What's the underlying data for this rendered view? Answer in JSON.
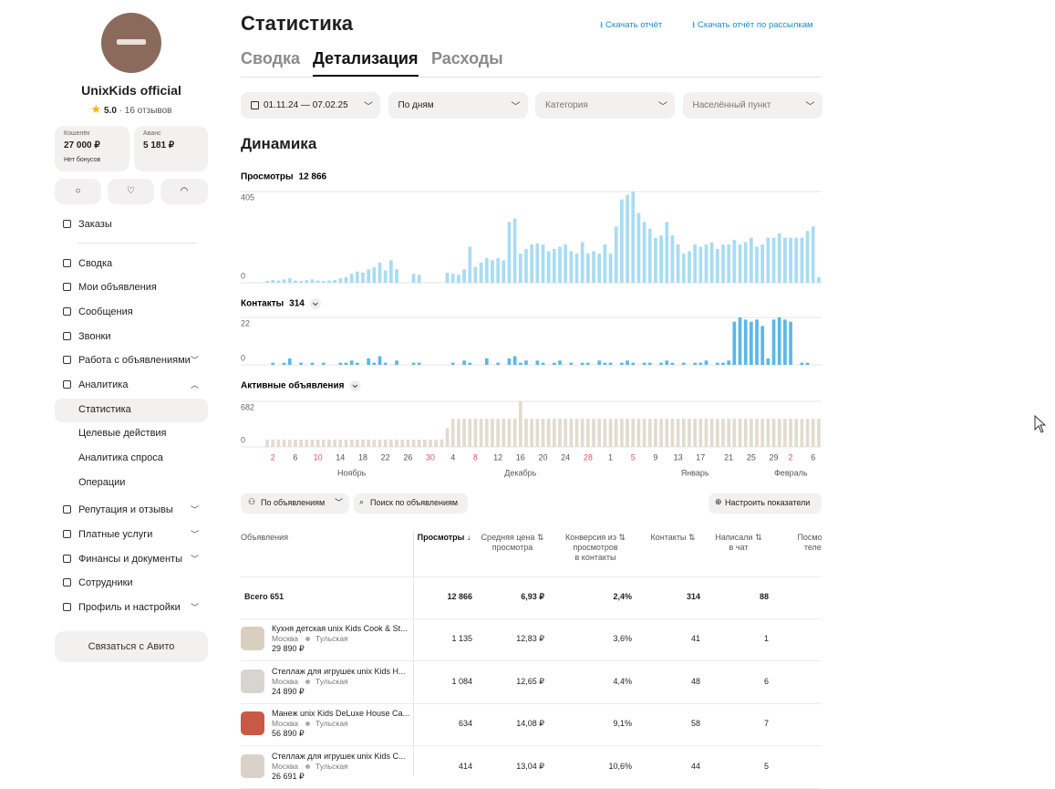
{
  "sidebar": {
    "name": "UnixKids official",
    "rating": "5.0",
    "reviews": "· 16 отзывов",
    "wallet": {
      "label": "Кошелёк",
      "value": "27 000 ₽",
      "note": "Нет бонусов"
    },
    "advance": {
      "label": "Аванс",
      "value": "5 181 ₽"
    },
    "menu": [
      {
        "label": "Заказы"
      },
      {
        "label": "Сводка"
      },
      {
        "label": "Мои объявления"
      },
      {
        "label": "Сообщения"
      },
      {
        "label": "Звонки"
      },
      {
        "label": "Работа с объявлениями",
        "chevron": "down"
      },
      {
        "label": "Аналитика",
        "chevron": "up"
      },
      {
        "label": "Статистика",
        "sub": true,
        "active": true
      },
      {
        "label": "Целевые действия",
        "sub": true
      },
      {
        "label": "Аналитика спроса",
        "sub": true
      },
      {
        "label": "Операции",
        "sub": true
      },
      {
        "label": "Репутация и отзывы",
        "chevron": "down"
      },
      {
        "label": "Платные услуги",
        "chevron": "down"
      },
      {
        "label": "Финансы и документы",
        "chevron": "down"
      },
      {
        "label": "Сотрудники"
      },
      {
        "label": "Профиль и настройки",
        "chevron": "down"
      }
    ],
    "contact_button": "Связаться с Авито"
  },
  "header": {
    "title": "Статистика",
    "links": [
      "Скачать отчёт",
      "Скачать отчёт по рассылкам"
    ],
    "tabs": [
      "Сводка",
      "Детализация",
      "Расходы"
    ],
    "active_tab": 1
  },
  "filters": [
    "01.11.24 — 07.02.25",
    "По дням",
    "Категория",
    "Населённый пункт"
  ],
  "section_title": "Динамика",
  "chart_data": [
    {
      "type": "bar",
      "title": "Просмотры",
      "total": "12 866",
      "color": "#a8dcf2",
      "ylim": [
        0,
        405
      ],
      "yticks": [
        0,
        405
      ],
      "grid": true,
      "values": [
        8,
        12,
        10,
        15,
        20,
        10,
        8,
        12,
        15,
        10,
        8,
        10,
        12,
        20,
        25,
        40,
        50,
        45,
        60,
        70,
        90,
        55,
        100,
        60,
        0,
        0,
        40,
        35,
        0,
        0,
        0,
        0,
        45,
        40,
        35,
        60,
        160,
        70,
        90,
        110,
        100,
        110,
        100,
        270,
        285,
        130,
        150,
        170,
        175,
        170,
        140,
        150,
        160,
        170,
        140,
        130,
        180,
        130,
        140,
        130,
        170,
        130,
        250,
        370,
        390,
        405,
        310,
        270,
        240,
        200,
        210,
        270,
        210,
        170,
        130,
        140,
        170,
        160,
        170,
        180,
        150,
        170,
        170,
        190,
        170,
        180,
        200,
        160,
        170,
        200,
        200,
        220,
        200,
        200,
        200,
        200,
        230,
        250,
        25
      ]
    },
    {
      "type": "bar",
      "title": "Контакты",
      "total": "314",
      "color": "#5bb8e6",
      "ylim": [
        0,
        22
      ],
      "yticks": [
        0,
        22
      ],
      "grid": true,
      "values": [
        0,
        1,
        0,
        1,
        3,
        0,
        1,
        0,
        1,
        0,
        1,
        0,
        0,
        1,
        1,
        2,
        1,
        0,
        3,
        1,
        4,
        1,
        0,
        2,
        0,
        0,
        1,
        1,
        0,
        0,
        0,
        0,
        0,
        1,
        0,
        2,
        1,
        0,
        0,
        3,
        0,
        1,
        0,
        3,
        4,
        1,
        2,
        0,
        2,
        1,
        0,
        1,
        2,
        0,
        1,
        0,
        1,
        1,
        0,
        2,
        1,
        1,
        0,
        1,
        2,
        1,
        0,
        1,
        1,
        0,
        1,
        2,
        1,
        0,
        1,
        0,
        1,
        1,
        2,
        0,
        1,
        1,
        2,
        20,
        22,
        21,
        20,
        21,
        18,
        3,
        21,
        22,
        21,
        20,
        0,
        1,
        1,
        0,
        0
      ]
    },
    {
      "type": "bar",
      "title": "Активные объявления",
      "color": "#e2dbcf",
      "ylim": [
        0,
        682
      ],
      "yticks": [
        0,
        682
      ],
      "grid": true,
      "values": [
        110,
        110,
        110,
        110,
        110,
        110,
        110,
        110,
        110,
        110,
        110,
        110,
        110,
        110,
        110,
        110,
        110,
        110,
        110,
        110,
        110,
        110,
        110,
        110,
        110,
        110,
        110,
        110,
        110,
        110,
        110,
        110,
        280,
        420,
        420,
        420,
        420,
        420,
        420,
        420,
        420,
        420,
        420,
        420,
        420,
        682,
        420,
        420,
        420,
        420,
        420,
        420,
        420,
        420,
        420,
        420,
        420,
        420,
        420,
        420,
        420,
        420,
        420,
        420,
        420,
        420,
        420,
        420,
        420,
        420,
        420,
        420,
        420,
        420,
        420,
        420,
        420,
        420,
        420,
        420,
        420,
        420,
        420,
        420,
        420,
        420,
        420,
        420,
        420,
        420,
        420,
        420,
        420,
        420,
        420,
        420,
        420,
        420,
        420
      ],
      "categories": [
        null,
        "2",
        null,
        null,
        null,
        "6",
        null,
        null,
        null,
        "10",
        null,
        null,
        null,
        "14",
        null,
        null,
        null,
        "18",
        null,
        null,
        null,
        "22",
        null,
        null,
        null,
        "26",
        null,
        null,
        null,
        "30",
        null,
        null,
        null,
        "4",
        null,
        null,
        null,
        "8",
        null,
        null,
        null,
        "12",
        null,
        null,
        null,
        "16",
        null,
        null,
        null,
        "20",
        null,
        null,
        null,
        "24",
        null,
        null,
        null,
        "28",
        null,
        null,
        null,
        "1",
        null,
        null,
        null,
        "5",
        null,
        null,
        null,
        "9",
        null,
        null,
        null,
        "13",
        null,
        null,
        null,
        "17",
        null,
        null,
        null,
        null,
        "21",
        null,
        null,
        null,
        "25",
        null,
        null,
        null,
        "29",
        null,
        null,
        "2",
        null,
        null,
        null,
        "6",
        null
      ],
      "weekend_color": "#e0575c",
      "weekend_categories": [
        1,
        9,
        29,
        37,
        57,
        65,
        85,
        93
      ],
      "months": [
        {
          "label": "Ноябрь",
          "at": 15
        },
        {
          "label": "Декабрь",
          "at": 45
        },
        {
          "label": "Январь",
          "at": 76
        },
        {
          "label": "Февраль",
          "at": 96
        }
      ]
    }
  ],
  "toolbar": {
    "left": [
      "По объявлениям",
      "Поиск по объявлениям"
    ],
    "right": "Настроить показатели"
  },
  "table": {
    "columns": [
      "Объявления",
      "Просмотры ↓",
      "Средняя цена ⇅\nпросмотра",
      "Конверсия из ⇅\nпросмотров\nв контакты",
      "Контакты ⇅",
      "Написали ⇅\nв чат",
      "Посмотрели\nтелефон"
    ],
    "total": {
      "label": "Всего 651",
      "cells": [
        "12 866",
        "6,93 ₽",
        "2,4%",
        "314",
        "88"
      ]
    },
    "rows": [
      {
        "title": "Кухня детская unix Kids Cook & St...",
        "city": "Москва",
        "metro": "Тульская",
        "price": "29 890 ₽",
        "cells": [
          "1 135",
          "12,83 ₽",
          "3,6%",
          "41",
          "1"
        ]
      },
      {
        "title": "Стеллаж для игрушек unix Kids H...",
        "city": "Москва",
        "metro": "Тульская",
        "price": "24 890 ₽",
        "cells": [
          "1 084",
          "12,65 ₽",
          "4,4%",
          "48",
          "6"
        ]
      },
      {
        "title": "Манеж unix Kids DeLuxe House Ca...",
        "city": "Москва",
        "metro": "Тульская",
        "price": "56 890 ₽",
        "cells": [
          "634",
          "14,08 ₽",
          "9,1%",
          "58",
          "7"
        ]
      },
      {
        "title": "Стеллаж для игрушек unix Kids C...",
        "city": "Москва",
        "metro": "Тульская",
        "price": "26 691 ₽",
        "cells": [
          "414",
          "13,04 ₽",
          "10,6%",
          "44",
          "5"
        ]
      }
    ]
  }
}
